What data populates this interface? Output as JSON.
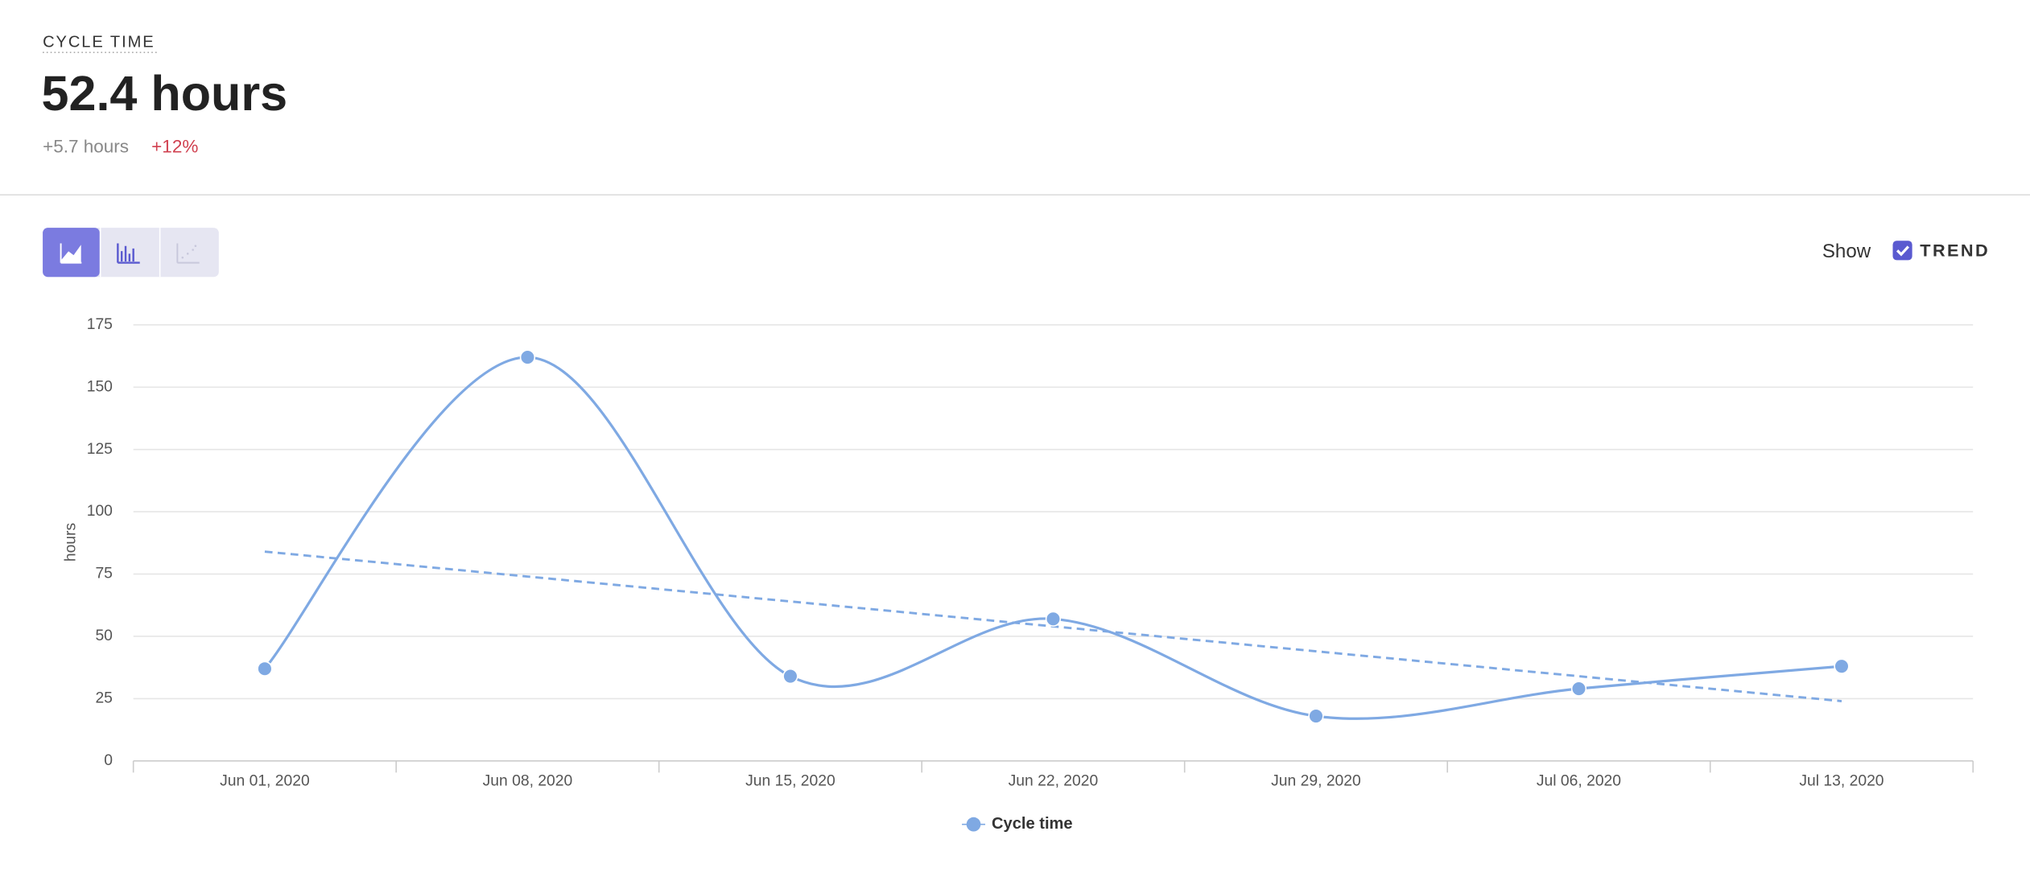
{
  "header": {
    "label": "CYCLE TIME",
    "value": "52.4 hours",
    "delta": "+5.7 hours",
    "delta_pct": "+12%"
  },
  "controls": {
    "show": "Show",
    "trend_label": "TREND"
  },
  "chart_data": {
    "type": "line",
    "y_label": "hours",
    "categories": [
      "Jun 01, 2020",
      "Jun 08, 2020",
      "Jun 15, 2020",
      "Jun 22, 2020",
      "Jun 29, 2020",
      "Jul 06, 2020",
      "Jul 13, 2020"
    ],
    "series": [
      {
        "name": "Cycle time",
        "color": "#7fa9e3",
        "values": [
          37,
          162,
          34,
          57,
          18,
          29,
          38
        ]
      }
    ],
    "trend": {
      "values": [
        84,
        74,
        64,
        54,
        44,
        34,
        24
      ],
      "show": true
    },
    "ylim": [
      0,
      175
    ],
    "yticks": [
      0,
      25,
      50,
      75,
      100,
      125,
      150,
      175
    ],
    "grid": true
  }
}
